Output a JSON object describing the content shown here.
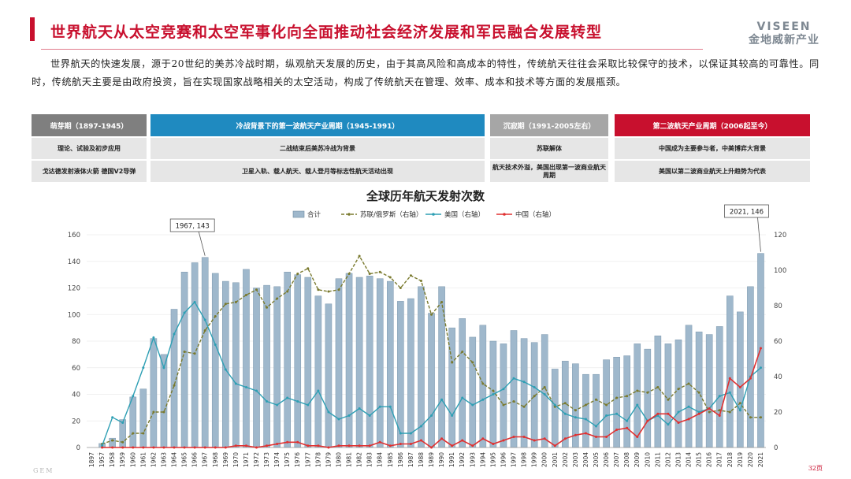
{
  "header": {
    "title": "世界航天从太空竞赛和太空军事化向全面推动社会经济发展和军民融合发展转型",
    "logo_brand": "VISEEN",
    "logo_sub": "金地威新产业",
    "accent_color": "#c8102e"
  },
  "intro": "世界航天的快速发展，源于20世纪的美苏冷战时期，纵观航天发展的历史，由于其高风险和高成本的特性，传统航天往往会采取比较保守的技术，以保证其较高的可靠性。同时，传统航天主要是由政府投资，旨在实现国家战略相关的太空活动，构成了传统航天在管理、效率、成本和技术等方面的发展瓶颈。",
  "phases": [
    {
      "header": "萌芽期（1897-1945）",
      "row1": "理论、试验及初步应用",
      "row2": "戈达德发射液体火箭 德国V2导弹",
      "color": "#7f7f7f"
    },
    {
      "header": "冷战背景下的第一波航天产业周期（1945-1991）",
      "row1": "二战结束后美苏冷战为背景",
      "row2": "卫星入轨、载人航天、载人登月等标志性航天活动出现",
      "color": "#1f8ac0"
    },
    {
      "header": "沉寂期（1991-2005左右）",
      "row1": "苏联解体",
      "row2": "航天技术外溢，美国出现第一波商业航天周期",
      "color": "#a6a6a6"
    },
    {
      "header": "第二波航天产业周期（2006起至今）",
      "row1": "中国成为主要参与者，中美博弈大背景",
      "row2": "美国以第二波商业航天上升趋势为代表",
      "color": "#c8102e"
    }
  ],
  "chart_data": {
    "type": "bar",
    "title": "全球历年航天发射次数",
    "categories": [
      "1897",
      "1957",
      "1958",
      "1959",
      "1960",
      "1961",
      "1962",
      "1963",
      "1964",
      "1965",
      "1966",
      "1967",
      "1968",
      "1969",
      "1970",
      "1971",
      "1972",
      "1973",
      "1974",
      "1975",
      "1976",
      "1977",
      "1978",
      "1979",
      "1980",
      "1981",
      "1982",
      "1983",
      "1984",
      "1985",
      "1986",
      "1987",
      "1988",
      "1989",
      "1990",
      "1991",
      "1992",
      "1993",
      "1994",
      "1995",
      "1996",
      "1997",
      "1998",
      "1999",
      "2000",
      "2001",
      "2002",
      "2003",
      "2004",
      "2005",
      "2006",
      "2007",
      "2008",
      "2009",
      "2010",
      "2011",
      "2012",
      "2013",
      "2014",
      "2015",
      "2016",
      "2017",
      "2018",
      "2019",
      "2020",
      "2021"
    ],
    "ylim_left": [
      0,
      160
    ],
    "ylim_right": [
      0,
      120
    ],
    "left_ticks": [
      0,
      20,
      40,
      60,
      80,
      100,
      120,
      140,
      160
    ],
    "right_ticks": [
      0,
      20,
      40,
      60,
      80,
      100,
      120
    ],
    "legend_placement": "top-center",
    "series": [
      {
        "name": "合计",
        "type": "bar",
        "axis": "left",
        "color": "#9fb8cc",
        "values": [
          null,
          3,
          7,
          21,
          38,
          44,
          82,
          70,
          104,
          132,
          139,
          143,
          131,
          125,
          124,
          134,
          120,
          122,
          121,
          132,
          130,
          128,
          114,
          108,
          127,
          131,
          128,
          129,
          127,
          125,
          110,
          112,
          121,
          101,
          121,
          90,
          97,
          83,
          92,
          80,
          78,
          88,
          82,
          79,
          85,
          59,
          65,
          63,
          55,
          55,
          66,
          68,
          69,
          78,
          74,
          84,
          78,
          81,
          92,
          87,
          85,
          91,
          114,
          102,
          121,
          146
        ]
      },
      {
        "name": "苏联/俄罗斯（右轴）",
        "type": "line",
        "axis": "right",
        "color": "#7a7a2e",
        "values": [
          null,
          2,
          4,
          3,
          8,
          8,
          20,
          20,
          35,
          54,
          53,
          66,
          74,
          81,
          82,
          86,
          89,
          79,
          84,
          88,
          98,
          101,
          89,
          88,
          89,
          98,
          108,
          98,
          99,
          96,
          90,
          97,
          94,
          75,
          82,
          48,
          54,
          48,
          36,
          32,
          24,
          26,
          23,
          29,
          34,
          23,
          25,
          21,
          24,
          27,
          24,
          28,
          29,
          32,
          31,
          34,
          27,
          33,
          36,
          31,
          20,
          21,
          20,
          25,
          17,
          17
        ]
      },
      {
        "name": "美国（右轴）",
        "type": "line",
        "axis": "right",
        "color": "#2e9fb4",
        "values": [
          null,
          1,
          17,
          14,
          29,
          45,
          62,
          45,
          64,
          76,
          82,
          72,
          58,
          44,
          36,
          34,
          32,
          26,
          24,
          28,
          26,
          24,
          32,
          20,
          16,
          18,
          22,
          18,
          23,
          23,
          8,
          8,
          12,
          18,
          27,
          18,
          28,
          24,
          27,
          30,
          33,
          39,
          37,
          34,
          30,
          24,
          19,
          17,
          16,
          12,
          18,
          19,
          15,
          24,
          15,
          18,
          13,
          20,
          23,
          20,
          22,
          29,
          31,
          21,
          40,
          45
        ]
      },
      {
        "name": "中国（右轴）",
        "type": "line",
        "axis": "right",
        "color": "#e03030",
        "values": [
          null,
          0,
          0,
          0,
          0,
          0,
          0,
          0,
          0,
          0,
          0,
          0,
          0,
          0,
          1,
          1,
          0,
          1,
          2,
          3,
          3,
          1,
          1,
          0,
          1,
          1,
          1,
          1,
          3,
          1,
          2,
          2,
          4,
          0,
          5,
          1,
          4,
          1,
          5,
          2,
          4,
          6,
          6,
          4,
          5,
          1,
          5,
          7,
          8,
          6,
          6,
          10,
          11,
          6,
          15,
          19,
          19,
          14,
          16,
          19,
          22,
          18,
          39,
          34,
          39,
          56
        ]
      }
    ],
    "annotations": [
      {
        "label": "1967, 143",
        "category": "1967"
      },
      {
        "label": "2021, 146",
        "category": "2021"
      }
    ]
  },
  "footer": {
    "left": "GEM",
    "right": "32页"
  }
}
